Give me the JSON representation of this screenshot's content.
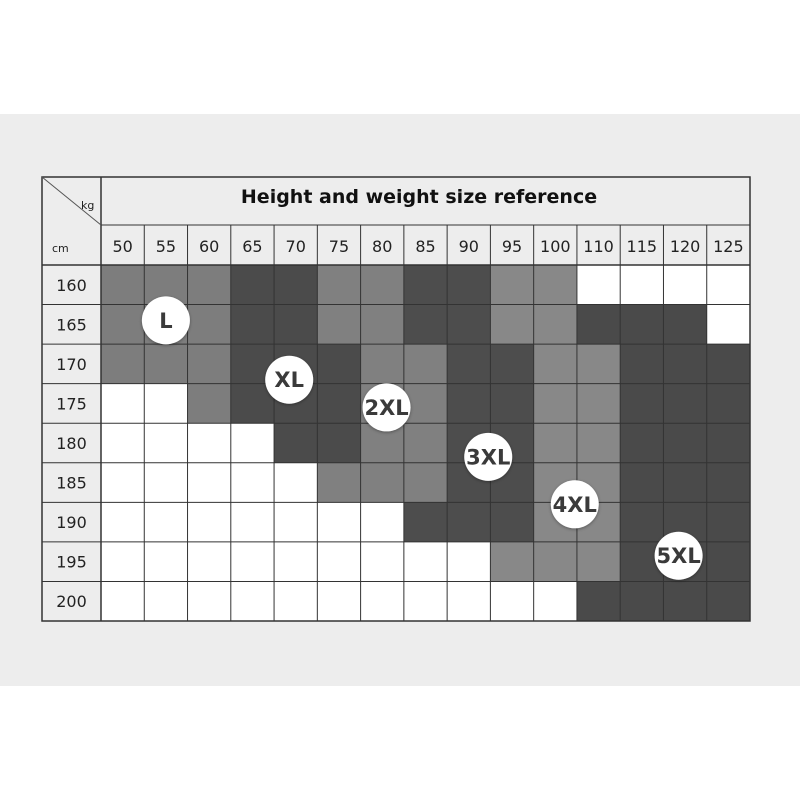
{
  "colors": {
    "L": "#7d7d7d",
    "XL": "#4b4b4b",
    "2XL": "#808080",
    "3XL": "#4d4d4d",
    "4XL": "#888888",
    "5XL": "#4a4a4a",
    "empty": "#ffffff",
    "grid_line": "#333333",
    "background_band": "#ededed"
  },
  "chart_data": {
    "type": "heatmap",
    "title": "Height and weight size reference",
    "x_unit": "kg",
    "y_unit": "cm",
    "x": [
      "50",
      "55",
      "60",
      "65",
      "70",
      "75",
      "80",
      "85",
      "90",
      "95",
      "100",
      "110",
      "115",
      "120",
      "125"
    ],
    "y": [
      "160",
      "165",
      "170",
      "175",
      "180",
      "185",
      "190",
      "195",
      "200"
    ],
    "legend": "none",
    "grid": true,
    "sizes": [
      "L",
      "XL",
      "2XL",
      "3XL",
      "4XL",
      "5XL"
    ],
    "cells": [
      [
        "L",
        "L",
        "L",
        "XL",
        "XL",
        "2XL",
        "2XL",
        "3XL",
        "3XL",
        "4XL",
        "4XL",
        "",
        "",
        "",
        ""
      ],
      [
        "L",
        "L",
        "L",
        "XL",
        "XL",
        "2XL",
        "2XL",
        "3XL",
        "3XL",
        "4XL",
        "4XL",
        "5XL",
        "5XL",
        "5XL",
        ""
      ],
      [
        "L",
        "L",
        "L",
        "XL",
        "XL",
        "XL",
        "2XL",
        "2XL",
        "3XL",
        "3XL",
        "4XL",
        "4XL",
        "5XL",
        "5XL",
        "5XL"
      ],
      [
        "",
        "",
        "L",
        "XL",
        "XL",
        "XL",
        "2XL",
        "2XL",
        "3XL",
        "3XL",
        "4XL",
        "4XL",
        "5XL",
        "5XL",
        "5XL"
      ],
      [
        "",
        "",
        "",
        "",
        "XL",
        "XL",
        "2XL",
        "2XL",
        "3XL",
        "3XL",
        "4XL",
        "4XL",
        "5XL",
        "5XL",
        "5XL"
      ],
      [
        "",
        "",
        "",
        "",
        "",
        "2XL",
        "2XL",
        "2XL",
        "3XL",
        "3XL",
        "4XL",
        "4XL",
        "5XL",
        "5XL",
        "5XL"
      ],
      [
        "",
        "",
        "",
        "",
        "",
        "",
        "",
        "3XL",
        "3XL",
        "3XL",
        "4XL",
        "4XL",
        "5XL",
        "5XL",
        "5XL"
      ],
      [
        "",
        "",
        "",
        "",
        "",
        "",
        "",
        "",
        "",
        "4XL",
        "4XL",
        "4XL",
        "5XL",
        "5XL",
        "5XL"
      ],
      [
        "",
        "",
        "",
        "",
        "",
        "",
        "",
        "",
        "",
        "",
        "",
        "5XL",
        "5XL",
        "5XL",
        "5XL"
      ]
    ],
    "labels": [
      {
        "text": "L",
        "col": 1.5,
        "row": 1.4
      },
      {
        "text": "XL",
        "col": 4.35,
        "row": 2.9
      },
      {
        "text": "2XL",
        "col": 6.6,
        "row": 3.6
      },
      {
        "text": "3XL",
        "col": 8.95,
        "row": 4.85
      },
      {
        "text": "4XL",
        "col": 10.95,
        "row": 6.05
      },
      {
        "text": "5XL",
        "col": 13.35,
        "row": 7.35
      }
    ]
  }
}
